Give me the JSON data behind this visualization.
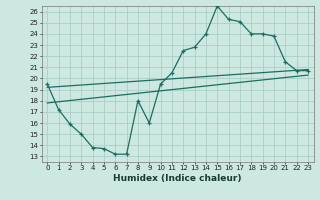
{
  "title": "",
  "xlabel": "Humidex (Indice chaleur)",
  "bg_color": "#cce8e0",
  "grid_color": "#aacfc8",
  "line_color": "#1a6e62",
  "xlim": [
    -0.5,
    23.5
  ],
  "ylim": [
    12.5,
    26.5
  ],
  "xticks": [
    0,
    1,
    2,
    3,
    4,
    5,
    6,
    7,
    8,
    9,
    10,
    11,
    12,
    13,
    14,
    15,
    16,
    17,
    18,
    19,
    20,
    21,
    22,
    23
  ],
  "yticks": [
    13,
    14,
    15,
    16,
    17,
    18,
    19,
    20,
    21,
    22,
    23,
    24,
    25,
    26
  ],
  "curve1_x": [
    0,
    1,
    2,
    3,
    4,
    5,
    6,
    7,
    8,
    9,
    10,
    11,
    12,
    13,
    14,
    15,
    16,
    17,
    18,
    19,
    20,
    21,
    22,
    23
  ],
  "curve1_y": [
    19.5,
    17.2,
    15.9,
    15.0,
    13.8,
    13.7,
    13.2,
    13.2,
    18.0,
    16.0,
    19.5,
    20.5,
    22.5,
    22.8,
    24.0,
    26.5,
    25.3,
    25.1,
    24.0,
    24.0,
    23.8,
    21.5,
    20.7,
    20.7
  ],
  "line1_x": [
    0,
    23
  ],
  "line1_y": [
    17.8,
    20.3
  ],
  "line2_x": [
    0,
    23
  ],
  "line2_y": [
    19.2,
    20.8
  ]
}
